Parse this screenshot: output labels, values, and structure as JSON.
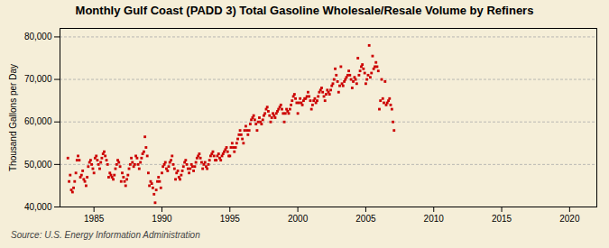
{
  "chart_data": {
    "type": "scatter",
    "title": "Monthly Gulf Coast (PADD 3) Total Gasoline Wholesale/Resale Volume by Refiners",
    "ylabel": "Thousand Gallons per Day",
    "source": "Source: U.S. Energy Information Administration",
    "color": "#cc0000",
    "marker": "square",
    "grid": "y",
    "xlim": [
      1982.5,
      2022
    ],
    "ylim": [
      40000,
      82000
    ],
    "xticks": [
      1985,
      1990,
      1995,
      2000,
      2005,
      2010,
      2015,
      2020
    ],
    "yticks": [
      {
        "value": 40000,
        "label": "40,000"
      },
      {
        "value": 50000,
        "label": "50,000"
      },
      {
        "value": 60000,
        "label": "60,000"
      },
      {
        "value": 70000,
        "label": "70,000"
      },
      {
        "value": 80000,
        "label": "80,000"
      }
    ],
    "x": [
      1983.08,
      1983.17,
      1983.25,
      1983.33,
      1983.42,
      1983.5,
      1983.58,
      1983.67,
      1983.75,
      1983.83,
      1983.92,
      1984.0,
      1984.08,
      1984.17,
      1984.25,
      1984.33,
      1984.42,
      1984.5,
      1984.58,
      1984.67,
      1984.75,
      1984.83,
      1984.92,
      1985.0,
      1985.08,
      1985.17,
      1985.25,
      1985.33,
      1985.42,
      1985.5,
      1985.58,
      1985.67,
      1985.75,
      1985.83,
      1985.92,
      1986.0,
      1986.08,
      1986.17,
      1986.25,
      1986.33,
      1986.42,
      1986.5,
      1986.58,
      1986.67,
      1986.75,
      1986.83,
      1986.92,
      1987.0,
      1987.08,
      1987.17,
      1987.25,
      1987.33,
      1987.42,
      1987.5,
      1987.58,
      1987.67,
      1987.75,
      1987.83,
      1987.92,
      1988.0,
      1988.08,
      1988.17,
      1988.25,
      1988.33,
      1988.42,
      1988.5,
      1988.58,
      1988.67,
      1988.75,
      1988.83,
      1988.92,
      1989.0,
      1989.08,
      1989.17,
      1989.25,
      1989.33,
      1989.42,
      1989.5,
      1989.58,
      1989.67,
      1989.75,
      1989.83,
      1989.92,
      1990.0,
      1990.08,
      1990.17,
      1990.25,
      1990.33,
      1990.42,
      1990.5,
      1990.58,
      1990.67,
      1990.75,
      1990.83,
      1990.92,
      1991.0,
      1991.08,
      1991.17,
      1991.25,
      1991.33,
      1991.42,
      1991.5,
      1991.58,
      1991.67,
      1991.75,
      1991.83,
      1991.92,
      1992.0,
      1992.08,
      1992.17,
      1992.25,
      1992.33,
      1992.42,
      1992.5,
      1992.58,
      1992.67,
      1992.75,
      1992.83,
      1992.92,
      1993.0,
      1993.08,
      1993.17,
      1993.25,
      1993.33,
      1993.42,
      1993.5,
      1993.58,
      1993.67,
      1993.75,
      1993.83,
      1993.92,
      1994.0,
      1994.08,
      1994.17,
      1994.25,
      1994.33,
      1994.42,
      1994.5,
      1994.58,
      1994.67,
      1994.75,
      1994.83,
      1994.92,
      1995.0,
      1995.08,
      1995.17,
      1995.25,
      1995.33,
      1995.42,
      1995.5,
      1995.58,
      1995.67,
      1995.75,
      1995.83,
      1995.92,
      1996.0,
      1996.08,
      1996.17,
      1996.25,
      1996.33,
      1996.42,
      1996.5,
      1996.58,
      1996.67,
      1996.75,
      1996.83,
      1996.92,
      1997.0,
      1997.08,
      1997.17,
      1997.25,
      1997.33,
      1997.42,
      1997.5,
      1997.58,
      1997.67,
      1997.75,
      1997.83,
      1997.92,
      1998.0,
      1998.08,
      1998.17,
      1998.25,
      1998.33,
      1998.42,
      1998.5,
      1998.58,
      1998.67,
      1998.75,
      1998.83,
      1998.92,
      1999.0,
      1999.08,
      1999.17,
      1999.25,
      1999.33,
      1999.42,
      1999.5,
      1999.58,
      1999.67,
      1999.75,
      1999.83,
      1999.92,
      2000.0,
      2000.08,
      2000.17,
      2000.25,
      2000.33,
      2000.42,
      2000.5,
      2000.58,
      2000.67,
      2000.75,
      2000.83,
      2000.92,
      2001.0,
      2001.08,
      2001.17,
      2001.25,
      2001.33,
      2001.42,
      2001.5,
      2001.58,
      2001.67,
      2001.75,
      2001.83,
      2001.92,
      2002.0,
      2002.08,
      2002.17,
      2002.25,
      2002.33,
      2002.42,
      2002.5,
      2002.58,
      2002.67,
      2002.75,
      2002.83,
      2002.92,
      2003.0,
      2003.08,
      2003.17,
      2003.25,
      2003.33,
      2003.42,
      2003.5,
      2003.58,
      2003.67,
      2003.75,
      2003.83,
      2003.92,
      2004.0,
      2004.08,
      2004.17,
      2004.25,
      2004.33,
      2004.42,
      2004.5,
      2004.58,
      2004.67,
      2004.75,
      2004.83,
      2004.92,
      2005.0,
      2005.08,
      2005.17,
      2005.25,
      2005.33,
      2005.42,
      2005.5,
      2005.58,
      2005.67,
      2005.75,
      2005.83,
      2005.92,
      2006.0,
      2006.08,
      2006.17,
      2006.25,
      2006.33,
      2006.42,
      2006.5,
      2006.58,
      2006.67,
      2006.75,
      2006.83,
      2006.92,
      2007.0,
      2007.08
    ],
    "values": [
      51500,
      46000,
      47500,
      44000,
      43500,
      44500,
      46000,
      48000,
      51000,
      52000,
      51000,
      47000,
      47500,
      48500,
      46500,
      46000,
      45000,
      47000,
      49500,
      50500,
      51000,
      50000,
      49000,
      48000,
      51500,
      52000,
      51000,
      50000,
      49000,
      50500,
      51500,
      52500,
      53000,
      52000,
      51000,
      50000,
      47000,
      48000,
      47500,
      47000,
      46500,
      47500,
      49000,
      50000,
      51000,
      50500,
      49500,
      46000,
      48000,
      47000,
      46000,
      45000,
      46500,
      47500,
      49000,
      50000,
      51500,
      50500,
      49500,
      50000,
      52000,
      51500,
      50000,
      49000,
      50500,
      51500,
      52500,
      53000,
      56500,
      54000,
      52000,
      48000,
      45000,
      46000,
      45500,
      44500,
      43000,
      41000,
      44000,
      46000,
      47000,
      46000,
      44500,
      48000,
      49500,
      50000,
      50500,
      49000,
      48500,
      49500,
      50500,
      51000,
      52000,
      50000,
      49000,
      46500,
      48000,
      48500,
      47000,
      46500,
      47500,
      48500,
      49500,
      50500,
      51000,
      50000,
      49000,
      48000,
      49000,
      50000,
      49500,
      48500,
      49500,
      50500,
      51500,
      52000,
      52500,
      51500,
      50500,
      49000,
      50000,
      50500,
      49500,
      49000,
      50000,
      51000,
      52000,
      52500,
      53000,
      52000,
      51000,
      51000,
      52000,
      52500,
      51500,
      51000,
      52000,
      52500,
      53000,
      53500,
      54000,
      53000,
      52000,
      52000,
      54000,
      55000,
      54000,
      53000,
      54000,
      55000,
      56000,
      57000,
      58000,
      57000,
      56000,
      55000,
      58000,
      59000,
      58000,
      57000,
      58000,
      59500,
      60500,
      61000,
      61500,
      60500,
      59500,
      58000,
      60000,
      61000,
      60000,
      59500,
      60500,
      61500,
      62000,
      63000,
      63500,
      62500,
      61500,
      60000,
      61000,
      62000,
      61500,
      61000,
      62000,
      62500,
      63000,
      63500,
      64000,
      63000,
      62000,
      60000,
      62000,
      63000,
      62500,
      62000,
      63000,
      64000,
      65000,
      66000,
      66500,
      65500,
      64500,
      62000,
      64500,
      65500,
      64500,
      64000,
      65000,
      65500,
      65500,
      66000,
      67000,
      66000,
      65000,
      63000,
      64000,
      65000,
      65500,
      64500,
      65000,
      66000,
      67000,
      67500,
      68000,
      67000,
      66000,
      65000,
      66500,
      67500,
      67000,
      66500,
      67500,
      68500,
      69000,
      70000,
      72500,
      71000,
      69500,
      67000,
      68500,
      73000,
      69000,
      68500,
      69500,
      70000,
      70500,
      71000,
      72000,
      71000,
      70000,
      68000,
      69500,
      70500,
      70000,
      69000,
      75000,
      71000,
      72000,
      73000,
      73500,
      72500,
      71500,
      69000,
      70000,
      71000,
      78000,
      70500,
      71500,
      75500,
      72500,
      73000,
      74000,
      73000,
      72000,
      63000,
      65000,
      70000,
      65500,
      64500,
      69500,
      64000,
      64500,
      65000,
      65500,
      64000,
      63000,
      60000,
      58000
    ]
  }
}
